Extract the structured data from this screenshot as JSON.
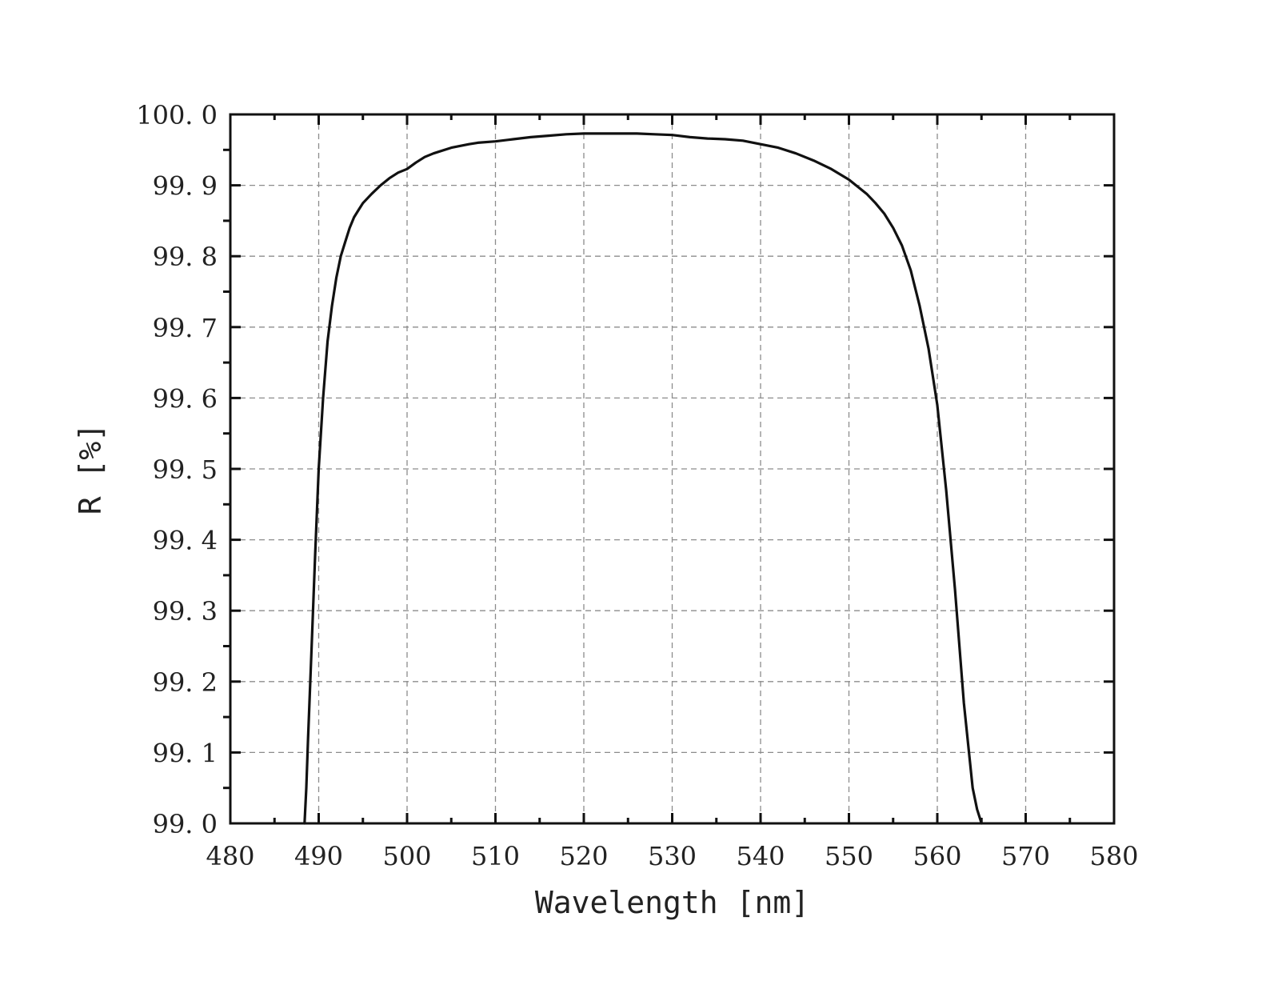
{
  "chart_data": {
    "type": "line",
    "title": "",
    "xlabel": "Wavelength [nm]",
    "ylabel": "R [%]",
    "xlim": [
      480,
      580
    ],
    "ylim": [
      99.0,
      100.0
    ],
    "x_ticks": [
      "480",
      "490",
      "500",
      "510",
      "520",
      "530",
      "540",
      "550",
      "560",
      "570",
      "580"
    ],
    "y_ticks": [
      "99. 0",
      "99. 1",
      "99. 2",
      "99. 3",
      "99. 4",
      "99. 5",
      "99. 6",
      "99. 7",
      "99. 8",
      "99. 9",
      "100. 0"
    ],
    "x_tick_values": [
      480,
      490,
      500,
      510,
      520,
      530,
      540,
      550,
      560,
      570,
      580
    ],
    "y_tick_values": [
      99.0,
      99.1,
      99.2,
      99.3,
      99.4,
      99.5,
      99.6,
      99.7,
      99.8,
      99.9,
      100.0
    ],
    "x_minor_step": 5,
    "y_minor_step": 0.05,
    "grid": true,
    "legend": "none",
    "series": [
      {
        "color": "#111111",
        "x": [
          488.4,
          488.6,
          488.8,
          489.2,
          489.6,
          490.0,
          490.5,
          491.0,
          491.5,
          492.0,
          492.5,
          493.0,
          493.5,
          494.0,
          494.5,
          495.0,
          496.0,
          497.0,
          498.0,
          499.0,
          500.0,
          501.0,
          502.0,
          503.0,
          505.0,
          507.0,
          508.0,
          510.0,
          512.0,
          514.0,
          516.0,
          518.0,
          520.0,
          522.0,
          524.0,
          526.0,
          528.0,
          530.0,
          532.0,
          534.0,
          536.0,
          538.0,
          540.0,
          542.0,
          544.0,
          546.0,
          548.0,
          550.0,
          552.0,
          553.0,
          554.0,
          555.0,
          556.0,
          557.0,
          558.0,
          559.0,
          560.0,
          561.0,
          562.0,
          563.0,
          564.0,
          564.5,
          565.0
        ],
        "y": [
          99.0,
          99.05,
          99.12,
          99.25,
          99.38,
          99.5,
          99.6,
          99.68,
          99.73,
          99.77,
          99.8,
          99.82,
          99.84,
          99.855,
          99.865,
          99.875,
          99.888,
          99.9,
          99.91,
          99.918,
          99.923,
          99.932,
          99.94,
          99.945,
          99.953,
          99.958,
          99.96,
          99.962,
          99.965,
          99.968,
          99.97,
          99.972,
          99.973,
          99.973,
          99.973,
          99.973,
          99.972,
          99.971,
          99.968,
          99.966,
          99.965,
          99.963,
          99.958,
          99.953,
          99.945,
          99.935,
          99.923,
          99.908,
          99.888,
          99.875,
          99.86,
          99.84,
          99.815,
          99.78,
          99.73,
          99.67,
          99.59,
          99.47,
          99.33,
          99.17,
          99.05,
          99.02,
          99.0
        ]
      }
    ]
  }
}
